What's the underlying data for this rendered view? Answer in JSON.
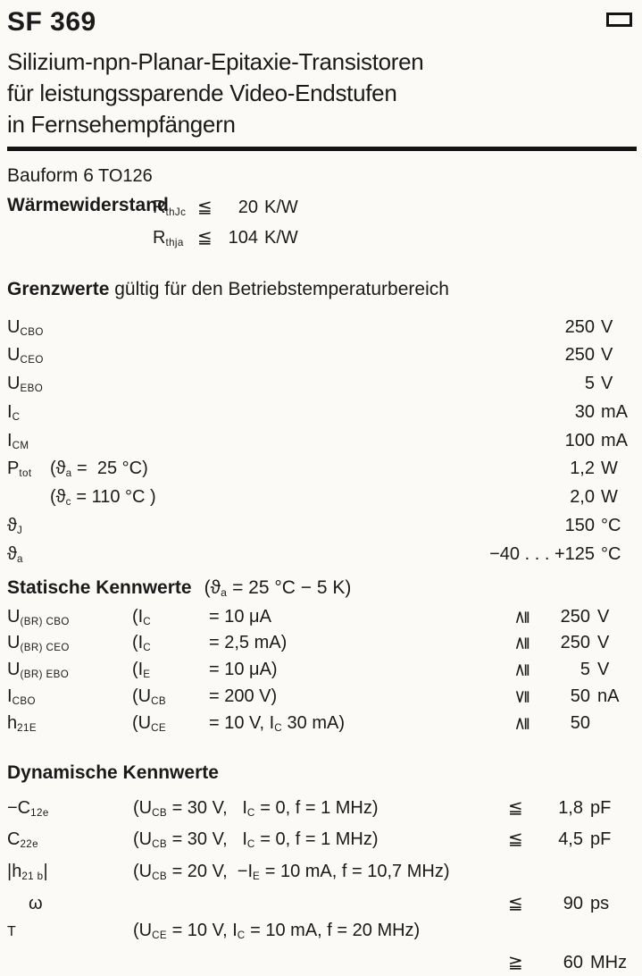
{
  "header": {
    "model": "SF 369",
    "description_lines": [
      "Silizium-npn-Planar-Epitaxie-Transistoren",
      "für leistungssparende Video-Endstufen",
      "in Fernsehempfängern"
    ],
    "corner_icon": "rectangle-outline-icon"
  },
  "bauform": {
    "label": "Bauform 6",
    "package": "TO126"
  },
  "thermal": {
    "label": "Wärmewiderstand",
    "rows": [
      {
        "sym": [
          {
            "t": "R"
          },
          {
            "s": "thJc"
          }
        ],
        "rel": "≦",
        "num": "20",
        "unit": "K/W"
      },
      {
        "sym": [
          {
            "t": "R"
          },
          {
            "s": "thja"
          }
        ],
        "rel": "≦",
        "num": "104",
        "unit": "K/W"
      }
    ]
  },
  "grenzwerte": {
    "heading_bold": "Grenzwerte",
    "heading_rest": " gültig für den Betriebstemperaturbereich",
    "rows": [
      {
        "sym": [
          {
            "t": "U"
          },
          {
            "s": "CBO"
          }
        ],
        "cond": [],
        "num": "250",
        "unit": "V"
      },
      {
        "sym": [
          {
            "t": "U"
          },
          {
            "s": "CEO"
          }
        ],
        "cond": [],
        "num": "250",
        "unit": "V"
      },
      {
        "sym": [
          {
            "t": "U"
          },
          {
            "s": "EBO"
          }
        ],
        "cond": [],
        "num": "5",
        "unit": "V"
      },
      {
        "sym": [
          {
            "t": "I"
          },
          {
            "s": "C"
          }
        ],
        "cond": [],
        "num": "30",
        "unit": "mA"
      },
      {
        "sym": [
          {
            "t": "I"
          },
          {
            "s": "CM"
          }
        ],
        "cond": [],
        "num": "100",
        "unit": "mA"
      },
      {
        "sym": [
          {
            "t": "P"
          },
          {
            "s": "tot"
          }
        ],
        "cond": [
          {
            "t": "(ϑ"
          },
          {
            "s": "a"
          },
          {
            "t": " =  25 °C)"
          }
        ],
        "num": "1,2",
        "unit": "W"
      },
      {
        "sym": [],
        "cond": [
          {
            "t": "(ϑ"
          },
          {
            "s": "c"
          },
          {
            "t": " = 110 °C )"
          }
        ],
        "num": "2,0",
        "unit": "W"
      },
      {
        "sym": [
          {
            "t": "ϑ"
          },
          {
            "s": "J"
          }
        ],
        "cond": [],
        "num": "150",
        "unit": "°C"
      },
      {
        "sym": [
          {
            "t": "ϑ"
          },
          {
            "s": "a"
          }
        ],
        "cond": [],
        "num": "−40 . . . +125",
        "unit": "°C"
      }
    ]
  },
  "statische": {
    "heading": "Statische Kennwerte",
    "heading_cond": [
      {
        "t": "(ϑ"
      },
      {
        "s": "a"
      },
      {
        "t": " = 25 °C − 5 K)"
      }
    ],
    "rows": [
      {
        "sym": [
          {
            "t": "U"
          },
          {
            "s": "(BR) CBO"
          }
        ],
        "c1": [
          {
            "t": "(I"
          },
          {
            "s": "C"
          }
        ],
        "c2": [
          {
            "t": "= 10 μA"
          }
        ],
        "rel": "≧",
        "num": "250",
        "unit": "V"
      },
      {
        "sym": [
          {
            "t": "U"
          },
          {
            "s": "(BR) CEO"
          }
        ],
        "c1": [
          {
            "t": "(I"
          },
          {
            "s": "C"
          }
        ],
        "c2": [
          {
            "t": "= 2,5 mA)"
          }
        ],
        "rel": "≧",
        "num": "250",
        "unit": "V"
      },
      {
        "sym": [
          {
            "t": "U"
          },
          {
            "s": "(BR) EBO"
          }
        ],
        "c1": [
          {
            "t": "(I"
          },
          {
            "s": "E"
          }
        ],
        "c2": [
          {
            "t": "= 10 μA)"
          }
        ],
        "rel": "≧",
        "num": "5",
        "unit": "V"
      },
      {
        "sym": [
          {
            "t": "I"
          },
          {
            "s": "CBO"
          }
        ],
        "c1": [
          {
            "t": "(U"
          },
          {
            "s": "CB"
          }
        ],
        "c2": [
          {
            "t": "= 200 V)"
          }
        ],
        "rel": "≦",
        "num": "50",
        "unit": "nA"
      },
      {
        "sym": [
          {
            "t": "h"
          },
          {
            "s": "21E"
          }
        ],
        "c1": [
          {
            "t": "(U"
          },
          {
            "s": "CE"
          }
        ],
        "c2": [
          {
            "t": "= 10 V, I"
          },
          {
            "s": "C"
          },
          {
            "t": " 30 mA)"
          }
        ],
        "rel": "≧",
        "num": "50",
        "unit": ""
      }
    ]
  },
  "dynamische": {
    "heading": "Dynamische Kennwerte",
    "rows": [
      {
        "sym": [
          {
            "t": "−C"
          },
          {
            "s": "12e"
          }
        ],
        "cond": [
          {
            "t": "(U"
          },
          {
            "s": "CB"
          },
          {
            "t": " = 30 V,   I"
          },
          {
            "s": "C"
          },
          {
            "t": " = 0, f = 1 MHz)"
          }
        ],
        "rel": "≦",
        "num": "1,8",
        "unit": "pF"
      },
      {
        "sym": [
          {
            "t": "C"
          },
          {
            "s": "22e"
          }
        ],
        "cond": [
          {
            "t": "(U"
          },
          {
            "s": "CB"
          },
          {
            "t": " = 30 V,   I"
          },
          {
            "s": "C"
          },
          {
            "t": " = 0, f = 1 MHz)"
          }
        ],
        "rel": "≦",
        "num": "4,5",
        "unit": "pF"
      },
      {
        "sym": [
          {
            "t": "|h"
          },
          {
            "s": "21 b"
          },
          {
            "t": "|"
          }
        ],
        "cond": [
          {
            "t": "(U"
          },
          {
            "s": "CB"
          },
          {
            "t": " = 20 V,  −I"
          },
          {
            "s": "E"
          },
          {
            "t": " = 10 mA, f = 10,7 MHz)"
          }
        ],
        "rel": "",
        "num": "",
        "unit": ""
      },
      {
        "sym": [
          {
            "t": "ω"
          }
        ],
        "cond": [],
        "rel": "≦",
        "num": "90",
        "unit": "ps"
      },
      {
        "sym": [
          {
            "t": "T"
          }
        ],
        "cond": [
          {
            "t": "(U"
          },
          {
            "s": "CE"
          },
          {
            "t": " = 10 V, I"
          },
          {
            "s": "C"
          },
          {
            "t": " = 10 mA, f = 20 MHz)"
          }
        ],
        "rel": "",
        "num": "",
        "unit": ""
      },
      {
        "sym": [],
        "cond": [],
        "rel": "≧",
        "num": "60",
        "unit": "MHz"
      }
    ]
  }
}
